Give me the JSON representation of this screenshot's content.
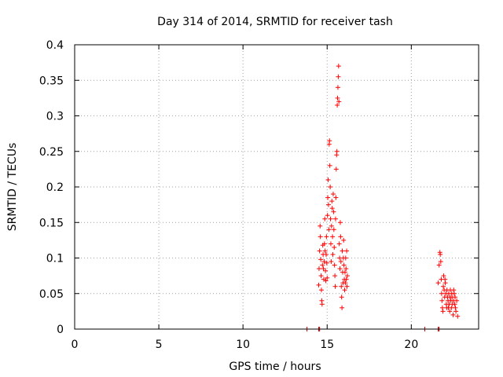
{
  "chart_data": {
    "type": "scatter",
    "title": "Day 314 of 2014, SRMTID for receiver tash",
    "xlabel": "GPS time / hours",
    "ylabel": "SRMTID / TECUs",
    "xlim": [
      0,
      24
    ],
    "ylim": [
      0,
      0.4
    ],
    "xticks": [
      0,
      5,
      10,
      15,
      20
    ],
    "yticks": [
      0,
      0.05,
      0.1,
      0.15,
      0.2,
      0.25,
      0.3,
      0.35,
      0.4
    ],
    "xtick_labels": [
      "0",
      "5",
      "10",
      "15",
      "20"
    ],
    "ytick_labels": [
      "0",
      "0.05",
      "0.1",
      "0.15",
      "0.2",
      "0.25",
      "0.3",
      "0.35",
      "0.4"
    ],
    "grid": true,
    "marker": "+",
    "color": "#ff0000",
    "zero_marker_color": "#cc0000",
    "series": [
      {
        "name": "SRMTID",
        "points": [
          [
            13.8,
            0
          ],
          [
            14.5,
            0
          ],
          [
            14.55,
            0
          ],
          [
            20.8,
            0
          ],
          [
            21.6,
            0
          ],
          [
            21.65,
            0
          ],
          [
            14.5,
            0.062
          ],
          [
            14.52,
            0.085
          ],
          [
            14.55,
            0.11
          ],
          [
            14.58,
            0.145
          ],
          [
            14.6,
            0.13
          ],
          [
            14.62,
            0.098
          ],
          [
            14.64,
            0.075
          ],
          [
            14.66,
            0.055
          ],
          [
            14.68,
            0.04
          ],
          [
            14.7,
            0.035
          ],
          [
            14.72,
            0.09
          ],
          [
            14.74,
            0.118
          ],
          [
            14.76,
            0.105
          ],
          [
            14.78,
            0.085
          ],
          [
            14.8,
            0.07
          ],
          [
            14.82,
            0.095
          ],
          [
            14.84,
            0.12
          ],
          [
            14.86,
            0.155
          ],
          [
            14.88,
            0.11
          ],
          [
            14.9,
            0.082
          ],
          [
            14.92,
            0.068
          ],
          [
            14.94,
            0.105
          ],
          [
            14.96,
            0.13
          ],
          [
            14.98,
            0.093
          ],
          [
            15.0,
            0.072
          ],
          [
            15.02,
            0.16
          ],
          [
            15.04,
            0.185
          ],
          [
            15.06,
            0.21
          ],
          [
            15.08,
            0.175
          ],
          [
            15.1,
            0.14
          ],
          [
            15.12,
            0.26
          ],
          [
            15.14,
            0.265
          ],
          [
            15.16,
            0.23
          ],
          [
            15.18,
            0.2
          ],
          [
            15.2,
            0.155
          ],
          [
            15.22,
            0.12
          ],
          [
            15.24,
            0.095
          ],
          [
            15.26,
            0.145
          ],
          [
            15.28,
            0.18
          ],
          [
            15.3,
            0.17
          ],
          [
            15.32,
            0.13
          ],
          [
            15.34,
            0.105
          ],
          [
            15.36,
            0.19
          ],
          [
            15.38,
            0.165
          ],
          [
            15.4,
            0.14
          ],
          [
            15.42,
            0.115
          ],
          [
            15.44,
            0.09
          ],
          [
            15.46,
            0.075
          ],
          [
            15.48,
            0.06
          ],
          [
            15.5,
            0.155
          ],
          [
            15.52,
            0.185
          ],
          [
            15.54,
            0.225
          ],
          [
            15.56,
            0.245
          ],
          [
            15.58,
            0.25
          ],
          [
            15.6,
            0.315
          ],
          [
            15.62,
            0.325
          ],
          [
            15.64,
            0.34
          ],
          [
            15.66,
            0.355
          ],
          [
            15.68,
            0.37
          ],
          [
            15.7,
            0.32
          ],
          [
            15.72,
            0.12
          ],
          [
            15.74,
            0.1
          ],
          [
            15.76,
            0.085
          ],
          [
            15.78,
            0.15
          ],
          [
            15.8,
            0.13
          ],
          [
            15.82,
            0.095
          ],
          [
            15.84,
            0.06
          ],
          [
            15.86,
            0.045
          ],
          [
            15.88,
            0.03
          ],
          [
            15.9,
            0.11
          ],
          [
            15.92,
            0.08
          ],
          [
            15.94,
            0.065
          ],
          [
            15.96,
            0.1
          ],
          [
            15.98,
            0.125
          ],
          [
            16.0,
            0.09
          ],
          [
            16.02,
            0.07
          ],
          [
            16.04,
            0.055
          ],
          [
            16.06,
            0.08
          ],
          [
            16.08,
            0.065
          ],
          [
            16.1,
            0.1
          ],
          [
            16.12,
            0.085
          ],
          [
            16.14,
            0.07
          ],
          [
            16.16,
            0.11
          ],
          [
            16.18,
            0.06
          ],
          [
            16.2,
            0.075
          ],
          [
            21.6,
            0.065
          ],
          [
            21.65,
            0.09
          ],
          [
            21.7,
            0.108
          ],
          [
            21.72,
            0.105
          ],
          [
            21.75,
            0.095
          ],
          [
            21.78,
            0.07
          ],
          [
            21.8,
            0.05
          ],
          [
            21.82,
            0.04
          ],
          [
            21.85,
            0.03
          ],
          [
            21.88,
            0.025
          ],
          [
            21.9,
            0.06
          ],
          [
            21.92,
            0.075
          ],
          [
            21.95,
            0.055
          ],
          [
            21.98,
            0.045
          ],
          [
            22.0,
            0.07
          ],
          [
            22.02,
            0.065
          ],
          [
            22.05,
            0.05
          ],
          [
            22.08,
            0.035
          ],
          [
            22.1,
            0.03
          ],
          [
            22.12,
            0.055
          ],
          [
            22.15,
            0.045
          ],
          [
            22.18,
            0.04
          ],
          [
            22.2,
            0.03
          ],
          [
            22.22,
            0.05
          ],
          [
            22.25,
            0.035
          ],
          [
            22.28,
            0.025
          ],
          [
            22.3,
            0.045
          ],
          [
            22.32,
            0.055
          ],
          [
            22.35,
            0.04
          ],
          [
            22.38,
            0.03
          ],
          [
            22.4,
            0.05
          ],
          [
            22.42,
            0.045
          ],
          [
            22.45,
            0.035
          ],
          [
            22.48,
            0.02
          ],
          [
            22.5,
            0.04
          ],
          [
            22.52,
            0.055
          ],
          [
            22.55,
            0.05
          ],
          [
            22.58,
            0.035
          ],
          [
            22.6,
            0.045
          ],
          [
            22.62,
            0.03
          ],
          [
            22.65,
            0.025
          ],
          [
            22.7,
            0.04
          ],
          [
            22.75,
            0.018
          ]
        ]
      }
    ]
  }
}
